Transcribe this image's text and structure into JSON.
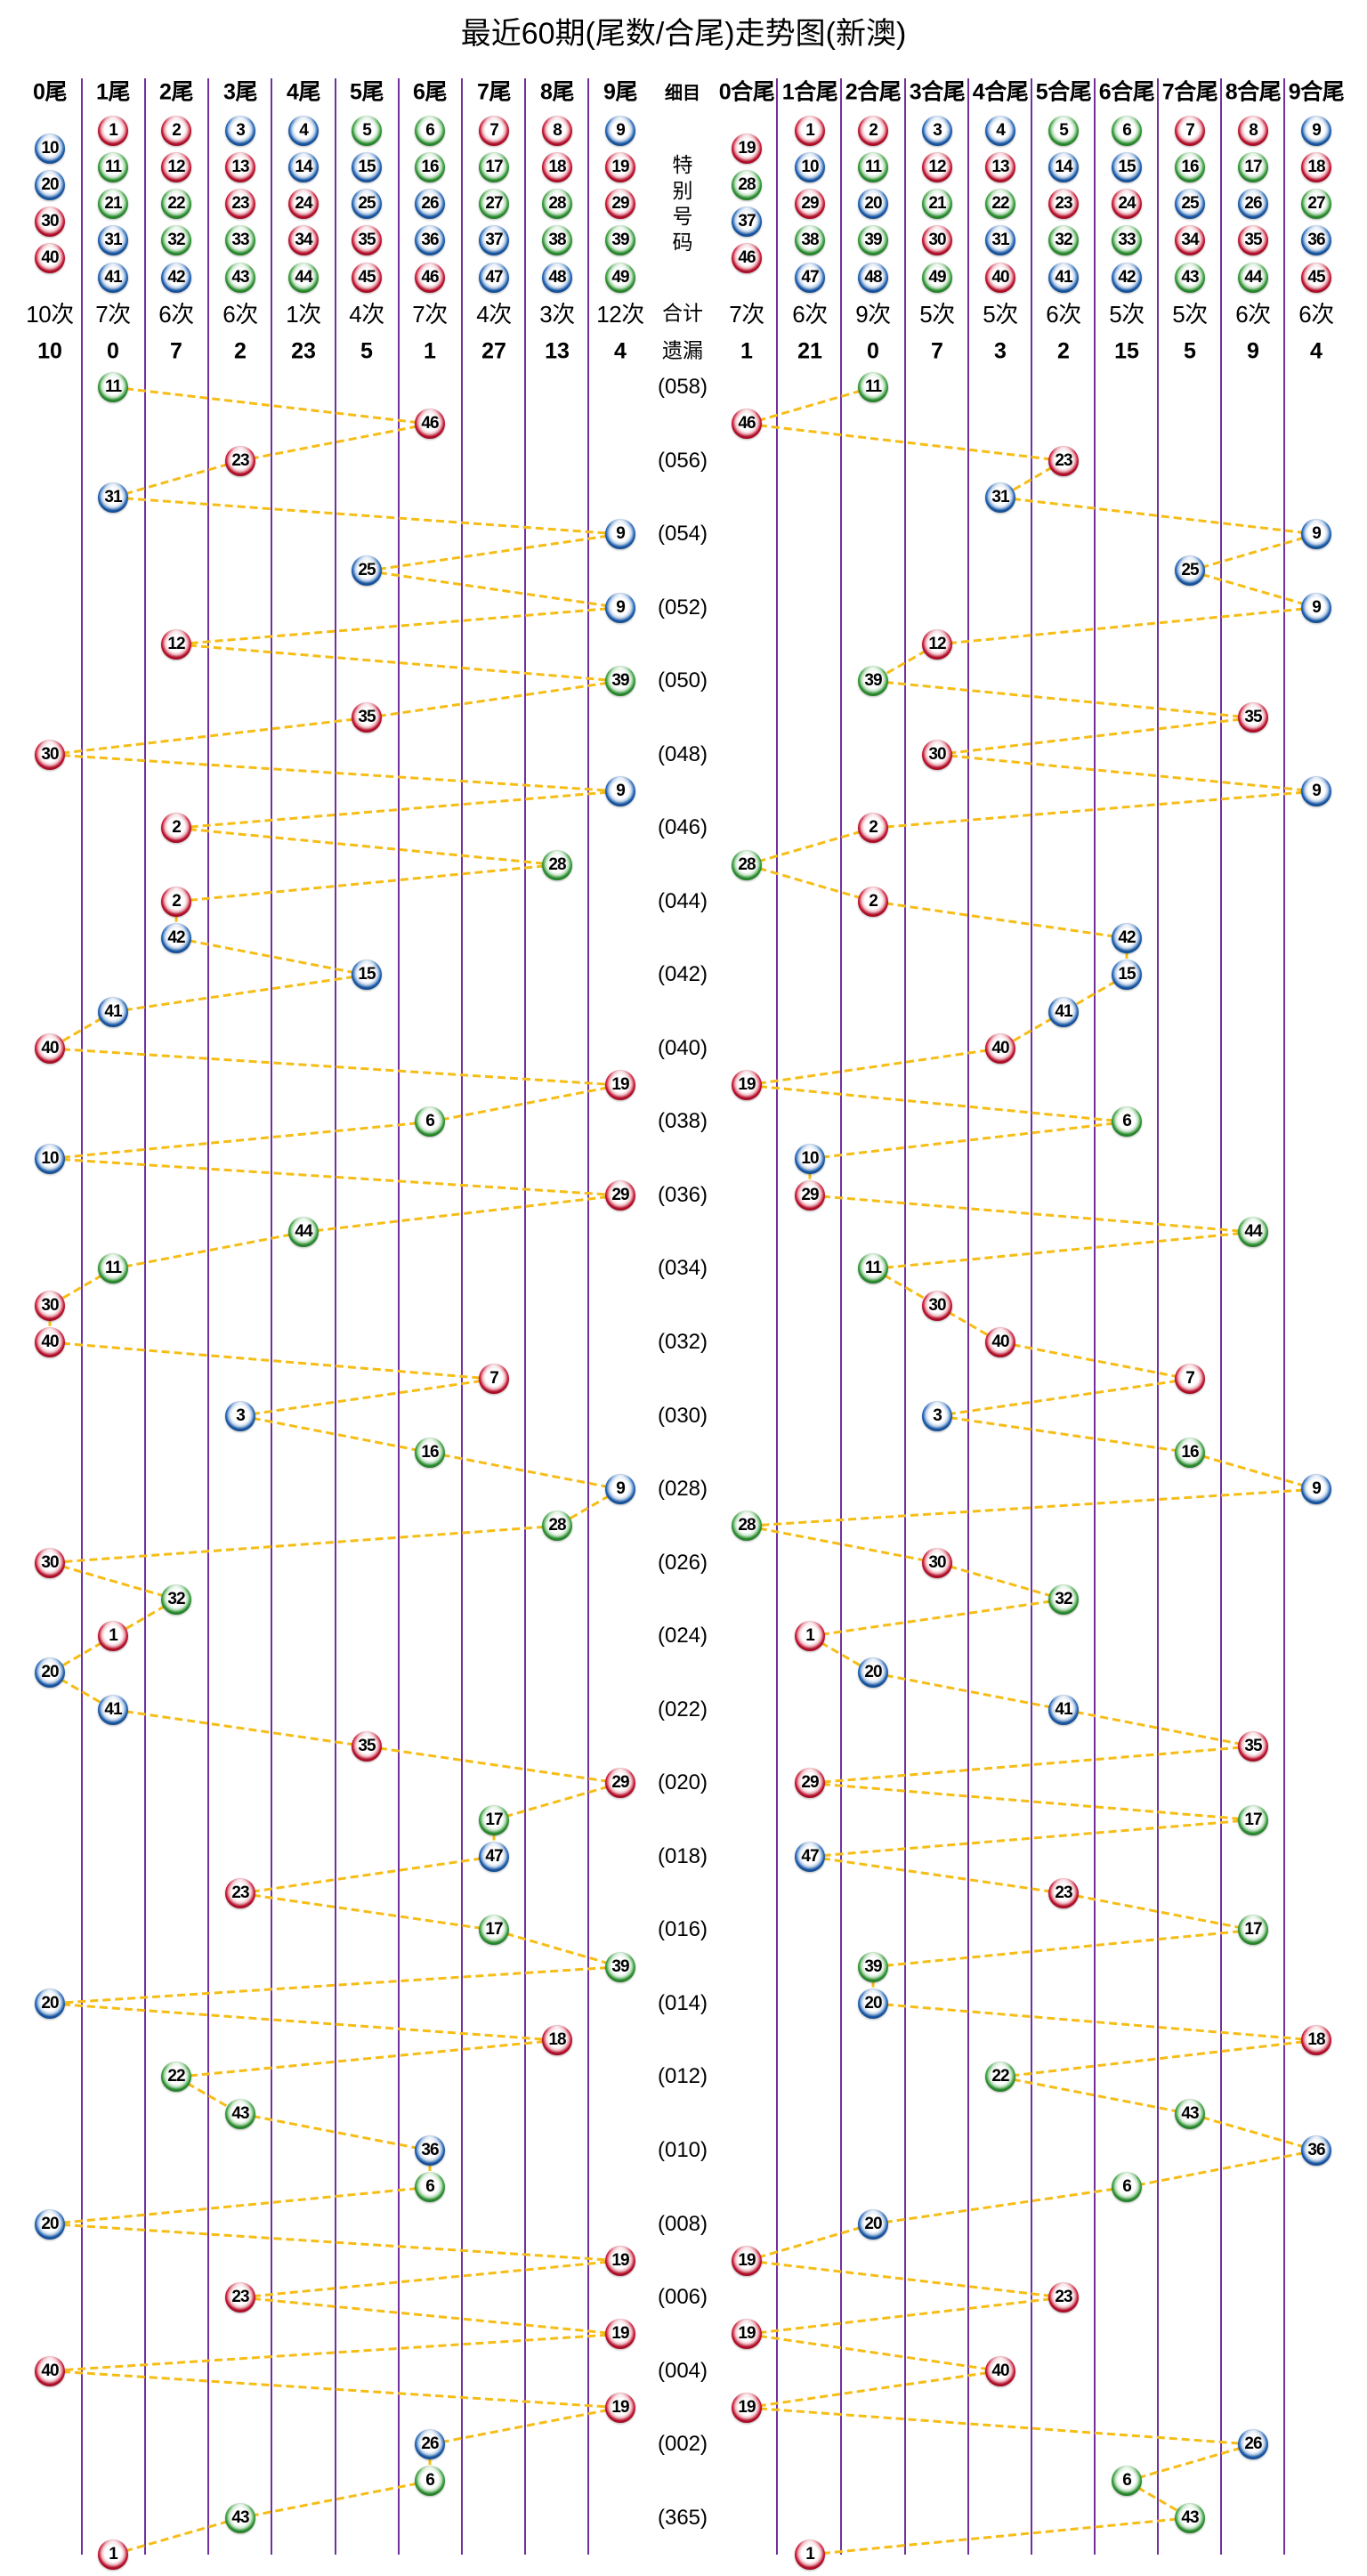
{
  "colors": {
    "red": "#c8102e",
    "blue": "#1a5fb4",
    "green": "#2e9b33",
    "trend_line": "#f6bd16",
    "grid_line": "#7030a0"
  },
  "color_groups": {
    "red": [
      1,
      2,
      7,
      8,
      12,
      13,
      18,
      19,
      23,
      24,
      29,
      30,
      34,
      35,
      40,
      45,
      46
    ],
    "blue": [
      3,
      4,
      9,
      10,
      14,
      15,
      20,
      25,
      26,
      31,
      36,
      37,
      41,
      42,
      47,
      48
    ],
    "green": [
      5,
      6,
      11,
      16,
      17,
      21,
      22,
      27,
      28,
      32,
      33,
      38,
      39,
      43,
      44,
      49
    ]
  },
  "chart_data": {
    "type": "line",
    "title": "最近60期(尾数/合尾)走势图(新澳)",
    "xlabel": "",
    "ylabel": "",
    "layout": {
      "orientation": "vertical",
      "grid": true,
      "legend": "none",
      "rows": 60,
      "x_label_interval": 2
    },
    "header": {
      "center": {
        "title": "细目",
        "special_label": "特别号码",
        "count_label": "合计",
        "omission_label": "遗漏"
      },
      "tail_columns": [
        {
          "label": "0尾",
          "numbers": [
            10,
            20,
            30,
            40
          ],
          "count": "10次",
          "omission": "10"
        },
        {
          "label": "1尾",
          "numbers": [
            1,
            11,
            21,
            31,
            41
          ],
          "count": "7次",
          "omission": "0"
        },
        {
          "label": "2尾",
          "numbers": [
            2,
            12,
            22,
            32,
            42
          ],
          "count": "6次",
          "omission": "7"
        },
        {
          "label": "3尾",
          "numbers": [
            3,
            13,
            23,
            33,
            43
          ],
          "count": "6次",
          "omission": "2"
        },
        {
          "label": "4尾",
          "numbers": [
            4,
            14,
            24,
            34,
            44
          ],
          "count": "1次",
          "omission": "23"
        },
        {
          "label": "5尾",
          "numbers": [
            5,
            15,
            25,
            35,
            45
          ],
          "count": "4次",
          "omission": "5"
        },
        {
          "label": "6尾",
          "numbers": [
            6,
            16,
            26,
            36,
            46
          ],
          "count": "7次",
          "omission": "1"
        },
        {
          "label": "7尾",
          "numbers": [
            7,
            17,
            27,
            37,
            47
          ],
          "count": "4次",
          "omission": "27"
        },
        {
          "label": "8尾",
          "numbers": [
            8,
            18,
            28,
            38,
            48
          ],
          "count": "3次",
          "omission": "13"
        },
        {
          "label": "9尾",
          "numbers": [
            9,
            19,
            29,
            39,
            49
          ],
          "count": "12次",
          "omission": "4"
        }
      ],
      "sum_tail_columns": [
        {
          "label": "0合尾",
          "numbers": [
            19,
            28,
            37,
            46
          ],
          "count": "7次",
          "omission": "1"
        },
        {
          "label": "1合尾",
          "numbers": [
            1,
            10,
            29,
            38,
            47
          ],
          "count": "6次",
          "omission": "21"
        },
        {
          "label": "2合尾",
          "numbers": [
            2,
            11,
            20,
            39,
            48
          ],
          "count": "9次",
          "omission": "0"
        },
        {
          "label": "3合尾",
          "numbers": [
            3,
            12,
            21,
            30,
            49
          ],
          "count": "5次",
          "omission": "7"
        },
        {
          "label": "4合尾",
          "numbers": [
            4,
            13,
            22,
            31,
            40
          ],
          "count": "5次",
          "omission": "3"
        },
        {
          "label": "5合尾",
          "numbers": [
            5,
            14,
            23,
            32,
            41
          ],
          "count": "6次",
          "omission": "2"
        },
        {
          "label": "6合尾",
          "numbers": [
            6,
            15,
            24,
            33,
            42
          ],
          "count": "5次",
          "omission": "15"
        },
        {
          "label": "7合尾",
          "numbers": [
            7,
            16,
            25,
            34,
            43
          ],
          "count": "5次",
          "omission": "5"
        },
        {
          "label": "8合尾",
          "numbers": [
            8,
            17,
            26,
            35,
            44
          ],
          "count": "6次",
          "omission": "9"
        },
        {
          "label": "9合尾",
          "numbers": [
            9,
            18,
            27,
            36,
            45
          ],
          "count": "6次",
          "omission": "4"
        }
      ]
    },
    "x_labels": [
      "(058)",
      "(056)",
      "(054)",
      "(052)",
      "(050)",
      "(048)",
      "(046)",
      "(044)",
      "(042)",
      "(040)",
      "(038)",
      "(036)",
      "(034)",
      "(032)",
      "(030)",
      "(028)",
      "(026)",
      "(024)",
      "(022)",
      "(020)",
      "(018)",
      "(016)",
      "(014)",
      "(012)",
      "(010)",
      "(008)",
      "(006)",
      "(004)",
      "(002)",
      "(365)"
    ],
    "special_numbers": [
      11,
      46,
      23,
      31,
      9,
      25,
      9,
      12,
      39,
      35,
      30,
      9,
      2,
      28,
      2,
      42,
      15,
      41,
      40,
      19,
      6,
      10,
      29,
      44,
      11,
      30,
      40,
      7,
      3,
      16,
      9,
      28,
      30,
      32,
      1,
      20,
      41,
      35,
      29,
      17,
      47,
      23,
      17,
      39,
      20,
      18,
      22,
      43,
      36,
      6,
      20,
      19,
      23,
      19,
      40,
      19,
      26,
      6,
      43,
      1
    ],
    "series": [
      {
        "name": "尾数",
        "categories": [
          "0尾",
          "1尾",
          "2尾",
          "3尾",
          "4尾",
          "5尾",
          "6尾",
          "7尾",
          "8尾",
          "9尾"
        ],
        "values": [
          1,
          6,
          3,
          1,
          9,
          5,
          9,
          2,
          9,
          5,
          0,
          9,
          2,
          8,
          2,
          2,
          5,
          1,
          0,
          9,
          6,
          0,
          9,
          4,
          1,
          0,
          0,
          7,
          3,
          6,
          9,
          8,
          0,
          2,
          1,
          0,
          1,
          5,
          9,
          7,
          7,
          3,
          7,
          9,
          0,
          8,
          2,
          3,
          6,
          6,
          0,
          9,
          3,
          9,
          0,
          9,
          6,
          6,
          3,
          1
        ]
      },
      {
        "name": "合尾",
        "categories": [
          "0合尾",
          "1合尾",
          "2合尾",
          "3合尾",
          "4合尾",
          "5合尾",
          "6合尾",
          "7合尾",
          "8合尾",
          "9合尾"
        ],
        "values": [
          2,
          0,
          5,
          4,
          9,
          7,
          9,
          3,
          2,
          8,
          3,
          9,
          2,
          0,
          2,
          6,
          6,
          5,
          4,
          0,
          6,
          1,
          1,
          8,
          2,
          3,
          4,
          7,
          3,
          7,
          9,
          0,
          3,
          5,
          1,
          2,
          5,
          8,
          1,
          8,
          1,
          5,
          8,
          2,
          2,
          9,
          4,
          7,
          9,
          6,
          2,
          0,
          5,
          0,
          4,
          0,
          8,
          6,
          7,
          1
        ]
      }
    ]
  }
}
